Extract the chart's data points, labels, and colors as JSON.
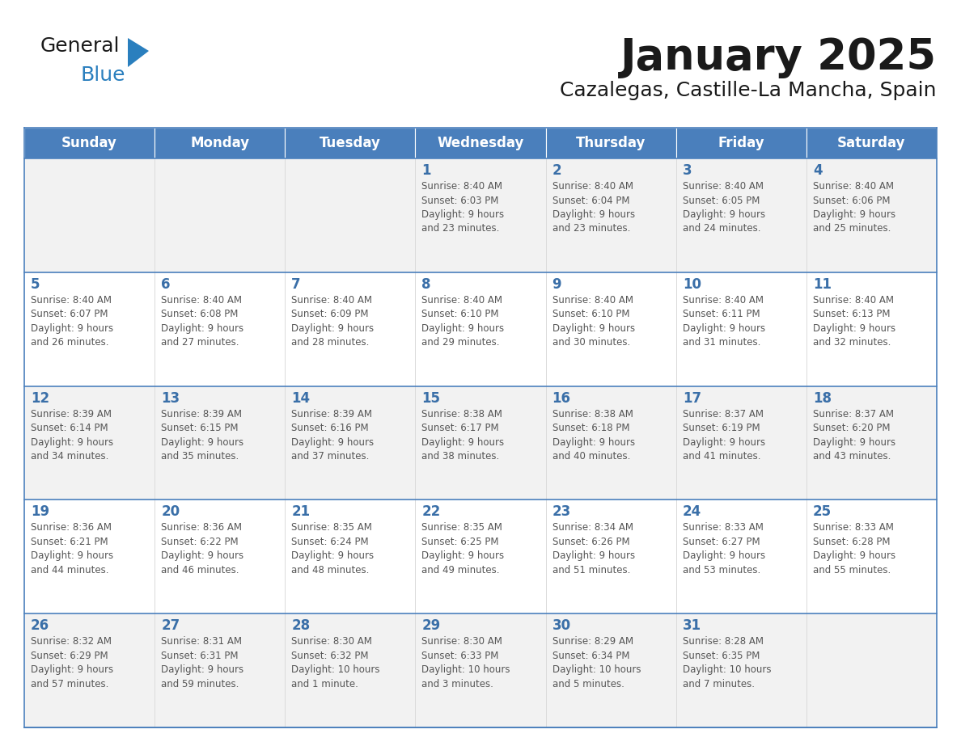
{
  "title": "January 2025",
  "subtitle": "Cazalegas, Castille-La Mancha, Spain",
  "days_of_week": [
    "Sunday",
    "Monday",
    "Tuesday",
    "Wednesday",
    "Thursday",
    "Friday",
    "Saturday"
  ],
  "header_bg": "#4a7fbc",
  "header_text": "#ffffff",
  "cell_bg_even": "#f2f2f2",
  "cell_bg_odd": "#ffffff",
  "line_color": "#4a7fbc",
  "day_num_color": "#3a6fa8",
  "text_color": "#555555",
  "title_color": "#1a1a1a",
  "subtitle_color": "#1a1a1a",
  "logo_general_color": "#1a1a1a",
  "logo_blue_color": "#2a7fbe",
  "weeks": [
    {
      "days": [
        {
          "date": null,
          "info": null
        },
        {
          "date": null,
          "info": null
        },
        {
          "date": null,
          "info": null
        },
        {
          "date": 1,
          "info": "Sunrise: 8:40 AM\nSunset: 6:03 PM\nDaylight: 9 hours\nand 23 minutes."
        },
        {
          "date": 2,
          "info": "Sunrise: 8:40 AM\nSunset: 6:04 PM\nDaylight: 9 hours\nand 23 minutes."
        },
        {
          "date": 3,
          "info": "Sunrise: 8:40 AM\nSunset: 6:05 PM\nDaylight: 9 hours\nand 24 minutes."
        },
        {
          "date": 4,
          "info": "Sunrise: 8:40 AM\nSunset: 6:06 PM\nDaylight: 9 hours\nand 25 minutes."
        }
      ]
    },
    {
      "days": [
        {
          "date": 5,
          "info": "Sunrise: 8:40 AM\nSunset: 6:07 PM\nDaylight: 9 hours\nand 26 minutes."
        },
        {
          "date": 6,
          "info": "Sunrise: 8:40 AM\nSunset: 6:08 PM\nDaylight: 9 hours\nand 27 minutes."
        },
        {
          "date": 7,
          "info": "Sunrise: 8:40 AM\nSunset: 6:09 PM\nDaylight: 9 hours\nand 28 minutes."
        },
        {
          "date": 8,
          "info": "Sunrise: 8:40 AM\nSunset: 6:10 PM\nDaylight: 9 hours\nand 29 minutes."
        },
        {
          "date": 9,
          "info": "Sunrise: 8:40 AM\nSunset: 6:10 PM\nDaylight: 9 hours\nand 30 minutes."
        },
        {
          "date": 10,
          "info": "Sunrise: 8:40 AM\nSunset: 6:11 PM\nDaylight: 9 hours\nand 31 minutes."
        },
        {
          "date": 11,
          "info": "Sunrise: 8:40 AM\nSunset: 6:13 PM\nDaylight: 9 hours\nand 32 minutes."
        }
      ]
    },
    {
      "days": [
        {
          "date": 12,
          "info": "Sunrise: 8:39 AM\nSunset: 6:14 PM\nDaylight: 9 hours\nand 34 minutes."
        },
        {
          "date": 13,
          "info": "Sunrise: 8:39 AM\nSunset: 6:15 PM\nDaylight: 9 hours\nand 35 minutes."
        },
        {
          "date": 14,
          "info": "Sunrise: 8:39 AM\nSunset: 6:16 PM\nDaylight: 9 hours\nand 37 minutes."
        },
        {
          "date": 15,
          "info": "Sunrise: 8:38 AM\nSunset: 6:17 PM\nDaylight: 9 hours\nand 38 minutes."
        },
        {
          "date": 16,
          "info": "Sunrise: 8:38 AM\nSunset: 6:18 PM\nDaylight: 9 hours\nand 40 minutes."
        },
        {
          "date": 17,
          "info": "Sunrise: 8:37 AM\nSunset: 6:19 PM\nDaylight: 9 hours\nand 41 minutes."
        },
        {
          "date": 18,
          "info": "Sunrise: 8:37 AM\nSunset: 6:20 PM\nDaylight: 9 hours\nand 43 minutes."
        }
      ]
    },
    {
      "days": [
        {
          "date": 19,
          "info": "Sunrise: 8:36 AM\nSunset: 6:21 PM\nDaylight: 9 hours\nand 44 minutes."
        },
        {
          "date": 20,
          "info": "Sunrise: 8:36 AM\nSunset: 6:22 PM\nDaylight: 9 hours\nand 46 minutes."
        },
        {
          "date": 21,
          "info": "Sunrise: 8:35 AM\nSunset: 6:24 PM\nDaylight: 9 hours\nand 48 minutes."
        },
        {
          "date": 22,
          "info": "Sunrise: 8:35 AM\nSunset: 6:25 PM\nDaylight: 9 hours\nand 49 minutes."
        },
        {
          "date": 23,
          "info": "Sunrise: 8:34 AM\nSunset: 6:26 PM\nDaylight: 9 hours\nand 51 minutes."
        },
        {
          "date": 24,
          "info": "Sunrise: 8:33 AM\nSunset: 6:27 PM\nDaylight: 9 hours\nand 53 minutes."
        },
        {
          "date": 25,
          "info": "Sunrise: 8:33 AM\nSunset: 6:28 PM\nDaylight: 9 hours\nand 55 minutes."
        }
      ]
    },
    {
      "days": [
        {
          "date": 26,
          "info": "Sunrise: 8:32 AM\nSunset: 6:29 PM\nDaylight: 9 hours\nand 57 minutes."
        },
        {
          "date": 27,
          "info": "Sunrise: 8:31 AM\nSunset: 6:31 PM\nDaylight: 9 hours\nand 59 minutes."
        },
        {
          "date": 28,
          "info": "Sunrise: 8:30 AM\nSunset: 6:32 PM\nDaylight: 10 hours\nand 1 minute."
        },
        {
          "date": 29,
          "info": "Sunrise: 8:30 AM\nSunset: 6:33 PM\nDaylight: 10 hours\nand 3 minutes."
        },
        {
          "date": 30,
          "info": "Sunrise: 8:29 AM\nSunset: 6:34 PM\nDaylight: 10 hours\nand 5 minutes."
        },
        {
          "date": 31,
          "info": "Sunrise: 8:28 AM\nSunset: 6:35 PM\nDaylight: 10 hours\nand 7 minutes."
        },
        {
          "date": null,
          "info": null
        }
      ]
    }
  ]
}
